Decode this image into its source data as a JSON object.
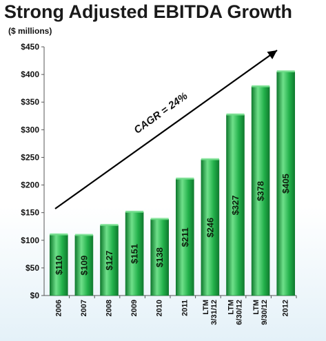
{
  "header": {
    "title": "Strong Adjusted EBITDA Growth",
    "units": "($ millions)"
  },
  "colors": {
    "bar_fill": "#22b04a",
    "bar_highlight": "#6fe08a",
    "bar_shadow": "#0f7a2e",
    "background_panel": "#e4f1f8",
    "axis": "#555555",
    "arrow": "#000000"
  },
  "chart_data": {
    "type": "bar",
    "title": "Strong Adjusted EBITDA Growth",
    "ylabel": "($ millions)",
    "xlabel": "",
    "ylim": [
      0,
      450
    ],
    "yticks": [
      0,
      50,
      100,
      150,
      200,
      250,
      300,
      350,
      400,
      450
    ],
    "ytick_labels": [
      "$0",
      "$50",
      "$100",
      "$150",
      "$200",
      "$250",
      "$300",
      "$350",
      "$400",
      "$450"
    ],
    "categories": [
      [
        "2006"
      ],
      [
        "2007"
      ],
      [
        "2008"
      ],
      [
        "2009"
      ],
      [
        "2010"
      ],
      [
        "2011"
      ],
      [
        "LTM",
        "3/31/12"
      ],
      [
        "LTM",
        "6/30/12"
      ],
      [
        "LTM",
        "9/30/12"
      ],
      [
        "2012"
      ]
    ],
    "values": [
      110,
      109,
      127,
      151,
      138,
      211,
      246,
      327,
      378,
      405
    ],
    "data_labels": [
      "$110",
      "$109",
      "$127",
      "$151",
      "$138",
      "$211",
      "$246",
      "$327",
      "$378",
      "$405"
    ],
    "annotation": {
      "text": "CAGR = 24%"
    },
    "grid": false,
    "legend": "none"
  }
}
